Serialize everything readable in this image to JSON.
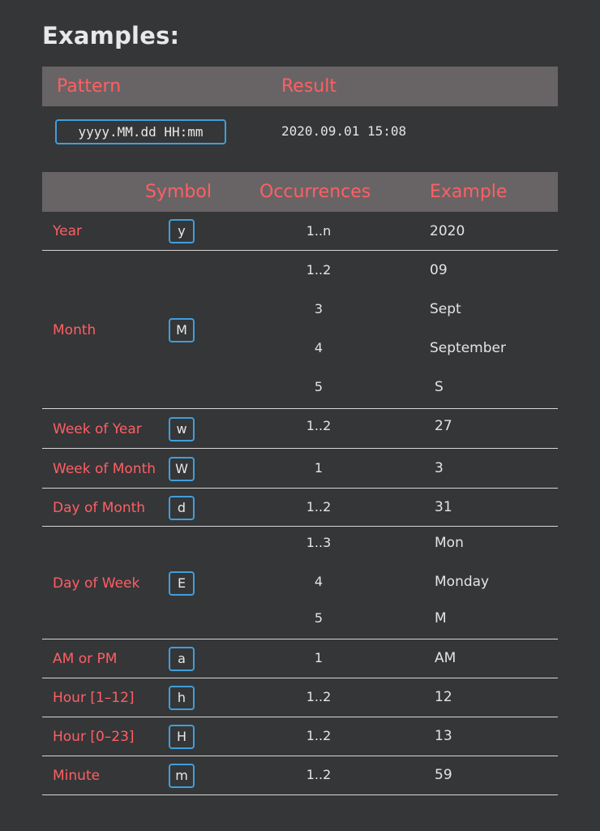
{
  "title": "Examples:",
  "pattern_table": {
    "headers": {
      "pattern": "Pattern",
      "result": "Result"
    },
    "pattern": "yyyy.MM.dd HH:mm",
    "result": "2020.09.01 15:08"
  },
  "symbols_table": {
    "headers": {
      "symbol": "Symbol",
      "occurrences": "Occurrences",
      "example": "Example"
    },
    "rows": [
      {
        "name": "Year",
        "symbol": "y",
        "entries": [
          {
            "occ": "1..n",
            "example": "2020"
          }
        ]
      },
      {
        "name": "Month",
        "symbol": "M",
        "entries": [
          {
            "occ": "1..2",
            "example": "09"
          },
          {
            "occ": "3",
            "example": "Sept"
          },
          {
            "occ": "4",
            "example": "September"
          },
          {
            "occ": "5",
            "example": "S"
          }
        ]
      },
      {
        "name": "Week of Year",
        "symbol": "w",
        "entries": [
          {
            "occ": "1..2",
            "example": "27"
          }
        ]
      },
      {
        "name": "Week of Month",
        "symbol": "W",
        "entries": [
          {
            "occ": "1",
            "example": "3"
          }
        ]
      },
      {
        "name": "Day of Month",
        "symbol": "d",
        "entries": [
          {
            "occ": "1..2",
            "example": "31"
          }
        ]
      },
      {
        "name": "Day of Week",
        "symbol": "E",
        "entries": [
          {
            "occ": "1..3",
            "example": "Mon"
          },
          {
            "occ": "4",
            "example": "Monday"
          },
          {
            "occ": "5",
            "example": "M"
          }
        ]
      },
      {
        "name": "AM or PM",
        "symbol": "a",
        "entries": [
          {
            "occ": "1",
            "example": "AM"
          }
        ]
      },
      {
        "name": "Hour [1–12]",
        "symbol": "h",
        "entries": [
          {
            "occ": "1..2",
            "example": "12"
          }
        ]
      },
      {
        "name": "Hour [0–23]",
        "symbol": "H",
        "entries": [
          {
            "occ": "1..2",
            "example": "13"
          }
        ]
      },
      {
        "name": "Minute",
        "symbol": "m",
        "entries": [
          {
            "occ": "1..2",
            "example": "59"
          }
        ]
      }
    ]
  },
  "colors": {
    "background": "#353638",
    "header_background": "#686465",
    "accent_text": "#ff5f64",
    "symbol_border": "#3f9fdc",
    "text": "#e4e4e4",
    "divider": "#d6d6d6"
  }
}
